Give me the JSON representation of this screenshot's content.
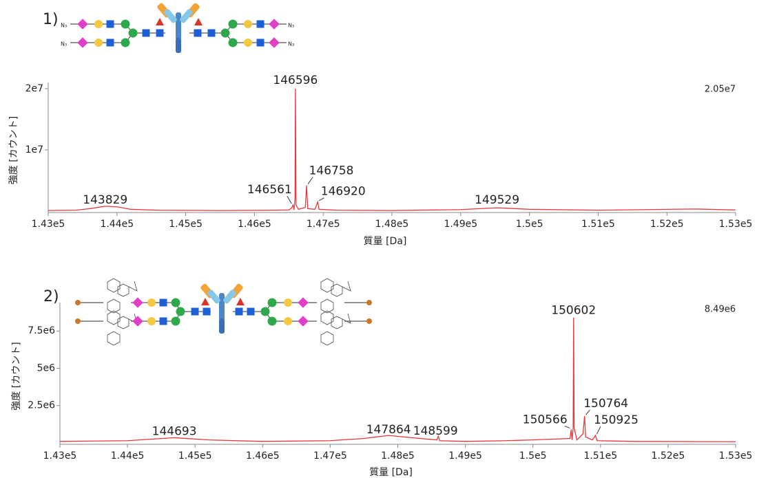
{
  "chart_data": [
    {
      "type": "line",
      "panel_label": "1)",
      "end_label": "N₃",
      "max_label": "2.05e7",
      "x_label": "質量 [Da]",
      "y_label": "強度 [カウント]",
      "color": "#e8363a",
      "xlim": [
        143000,
        153000
      ],
      "ylim": [
        0,
        21000000
      ],
      "xticks": [
        {
          "value": 143000,
          "label": "1.43e5"
        },
        {
          "value": 144000,
          "label": "1.44e5"
        },
        {
          "value": 145000,
          "label": "1.45e5"
        },
        {
          "value": 146000,
          "label": "1.46e5"
        },
        {
          "value": 147000,
          "label": "1.47e5"
        },
        {
          "value": 148000,
          "label": "1.48e5"
        },
        {
          "value": 149000,
          "label": "1.49e5"
        },
        {
          "value": 150000,
          "label": "1.5e5"
        },
        {
          "value": 151000,
          "label": "1.51e5"
        },
        {
          "value": 152000,
          "label": "1.52e5"
        },
        {
          "value": 153000,
          "label": "1.53e5"
        }
      ],
      "yticks": [
        {
          "value": 10000000,
          "label": "1e7"
        },
        {
          "value": 20000000,
          "label": "2e7"
        }
      ],
      "x": [
        143000,
        143400,
        143600,
        143829,
        144000,
        144200,
        144600,
        145500,
        146300,
        146500,
        146540,
        146561,
        146575,
        146590,
        146596,
        146605,
        146640,
        146740,
        146758,
        146775,
        146880,
        146920,
        146940,
        147200,
        148000,
        149000,
        149529,
        150000,
        151000,
        152400,
        153000
      ],
      "values": [
        100000,
        150000,
        400000,
        800000,
        700000,
        300000,
        150000,
        100000,
        150000,
        200000,
        500000,
        1000000,
        200000,
        2000000,
        20000000,
        1000000,
        300000,
        600000,
        4200000,
        400000,
        300000,
        1500000,
        300000,
        150000,
        100000,
        250000,
        550000,
        300000,
        150000,
        350000,
        200000
      ],
      "peak_labels": [
        143829,
        146561,
        146596,
        146758,
        146920,
        149529
      ]
    },
    {
      "type": "line",
      "panel_label": "2)",
      "max_label": "8.49e6",
      "x_label": "質量 [Da]",
      "y_label": "強度 [カウント]",
      "color": "#e8363a",
      "xlim": [
        143000,
        153000
      ],
      "ylim": [
        0,
        9400000
      ],
      "xticks": [
        {
          "value": 143000,
          "label": "1.43e5"
        },
        {
          "value": 144000,
          "label": "1.44e5"
        },
        {
          "value": 145000,
          "label": "1.45e5"
        },
        {
          "value": 146000,
          "label": "1.46e5"
        },
        {
          "value": 147000,
          "label": "1.47e5"
        },
        {
          "value": 148000,
          "label": "1.48e5"
        },
        {
          "value": 149000,
          "label": "1.49e5"
        },
        {
          "value": 150000,
          "label": "1.5e5"
        },
        {
          "value": 151000,
          "label": "1.51e5"
        },
        {
          "value": 152000,
          "label": "1.52e5"
        },
        {
          "value": 153000,
          "label": "1.53e5"
        }
      ],
      "yticks": [
        {
          "value": 2500000,
          "label": "2.5e6"
        },
        {
          "value": 5000000,
          "label": "5e6"
        },
        {
          "value": 7500000,
          "label": "7.5e6"
        }
      ],
      "x": [
        143000,
        144000,
        144693,
        145200,
        146000,
        147000,
        147500,
        147864,
        148200,
        148580,
        148599,
        148620,
        149000,
        149600,
        150000,
        150550,
        150566,
        150580,
        150595,
        150602,
        150610,
        150650,
        150740,
        150764,
        150780,
        150880,
        150925,
        150950,
        151500,
        153000
      ],
      "values": [
        100000,
        150000,
        350000,
        200000,
        100000,
        150000,
        300000,
        500000,
        350000,
        200000,
        450000,
        150000,
        100000,
        150000,
        200000,
        300000,
        900000,
        200000,
        1000000,
        8400000,
        1000000,
        200000,
        600000,
        1800000,
        400000,
        200000,
        500000,
        150000,
        100000,
        80000
      ],
      "peak_labels": [
        144693,
        147864,
        148599,
        150566,
        150602,
        150764,
        150925
      ]
    }
  ]
}
